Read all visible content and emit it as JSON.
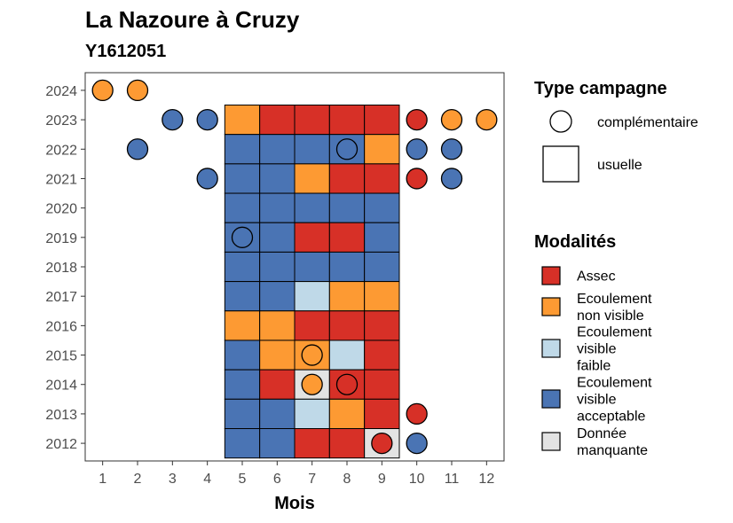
{
  "chart_data": {
    "type": "heatmap",
    "title": "La Nazoure à Cruzy",
    "subtitle": "Y1612051",
    "xlabel": "Mois",
    "ylabel": "",
    "x_ticks": [
      1,
      2,
      3,
      4,
      5,
      6,
      7,
      8,
      9,
      10,
      11,
      12
    ],
    "y_ticks": [
      2012,
      2013,
      2014,
      2015,
      2016,
      2017,
      2018,
      2019,
      2020,
      2021,
      2022,
      2023,
      2024
    ],
    "xlim": [
      0.5,
      12.5
    ],
    "ylim": [
      2011.4,
      2024.6
    ],
    "grid": false,
    "legend_position": "right",
    "colors": {
      "assec": "#d73027",
      "non_visible": "#fd9a33",
      "faible": "#bfd9e8",
      "acceptable": "#4a74b4",
      "manquante": "#e3e3e3"
    },
    "legends": {
      "type": {
        "title": "Type campagne",
        "items": [
          {
            "label": "complémentaire",
            "shape": "circle"
          },
          {
            "label": "usuelle",
            "shape": "square"
          }
        ]
      },
      "modalites": {
        "title": "Modalités",
        "items": [
          {
            "key": "assec",
            "lines": [
              "Assec"
            ]
          },
          {
            "key": "non_visible",
            "lines": [
              "Ecoulement",
              "non visible"
            ]
          },
          {
            "key": "faible",
            "lines": [
              "Ecoulement",
              "visible",
              "faible"
            ]
          },
          {
            "key": "acceptable",
            "lines": [
              "Ecoulement",
              "visible",
              "acceptable"
            ]
          },
          {
            "key": "manquante",
            "lines": [
              "Donnée",
              "manquante"
            ]
          }
        ]
      }
    },
    "usuelle": [
      {
        "year": 2023,
        "values": {
          "5": "non_visible",
          "6": "assec",
          "7": "assec",
          "8": "assec",
          "9": "assec"
        }
      },
      {
        "year": 2022,
        "values": {
          "5": "acceptable",
          "6": "acceptable",
          "7": "acceptable",
          "8": "acceptable",
          "9": "non_visible"
        }
      },
      {
        "year": 2021,
        "values": {
          "5": "acceptable",
          "6": "acceptable",
          "7": "non_visible",
          "8": "assec",
          "9": "assec"
        }
      },
      {
        "year": 2020,
        "values": {
          "5": "acceptable",
          "6": "acceptable",
          "7": "acceptable",
          "8": "acceptable",
          "9": "acceptable"
        }
      },
      {
        "year": 2019,
        "values": {
          "5": "acceptable",
          "6": "acceptable",
          "7": "assec",
          "8": "assec",
          "9": "acceptable"
        }
      },
      {
        "year": 2018,
        "values": {
          "5": "acceptable",
          "6": "acceptable",
          "7": "acceptable",
          "8": "acceptable",
          "9": "acceptable"
        }
      },
      {
        "year": 2017,
        "values": {
          "5": "acceptable",
          "6": "acceptable",
          "7": "faible",
          "8": "non_visible",
          "9": "non_visible"
        }
      },
      {
        "year": 2016,
        "values": {
          "5": "non_visible",
          "6": "non_visible",
          "7": "assec",
          "8": "assec",
          "9": "assec"
        }
      },
      {
        "year": 2015,
        "values": {
          "5": "acceptable",
          "6": "non_visible",
          "7": "non_visible",
          "8": "faible",
          "9": "assec"
        }
      },
      {
        "year": 2014,
        "values": {
          "5": "acceptable",
          "6": "assec",
          "7": "manquante",
          "8": "assec",
          "9": "assec"
        }
      },
      {
        "year": 2013,
        "values": {
          "5": "acceptable",
          "6": "acceptable",
          "7": "faible",
          "8": "non_visible",
          "9": "assec"
        }
      },
      {
        "year": 2012,
        "values": {
          "5": "acceptable",
          "6": "acceptable",
          "7": "assec",
          "8": "assec",
          "9": "manquante"
        }
      }
    ],
    "complementaire": [
      {
        "year": 2024,
        "month": 1,
        "value": "non_visible"
      },
      {
        "year": 2024,
        "month": 2,
        "value": "non_visible"
      },
      {
        "year": 2023,
        "month": 3,
        "value": "acceptable"
      },
      {
        "year": 2023,
        "month": 4,
        "value": "acceptable"
      },
      {
        "year": 2023,
        "month": 10,
        "value": "assec"
      },
      {
        "year": 2023,
        "month": 11,
        "value": "non_visible"
      },
      {
        "year": 2023,
        "month": 12,
        "value": "non_visible"
      },
      {
        "year": 2022,
        "month": 2,
        "value": "acceptable"
      },
      {
        "year": 2022,
        "month": 8,
        "value": "acceptable"
      },
      {
        "year": 2022,
        "month": 10,
        "value": "acceptable"
      },
      {
        "year": 2022,
        "month": 11,
        "value": "acceptable"
      },
      {
        "year": 2021,
        "month": 4,
        "value": "acceptable"
      },
      {
        "year": 2021,
        "month": 10,
        "value": "assec"
      },
      {
        "year": 2021,
        "month": 11,
        "value": "acceptable"
      },
      {
        "year": 2019,
        "month": 5,
        "value": "acceptable"
      },
      {
        "year": 2015,
        "month": 7,
        "value": "non_visible"
      },
      {
        "year": 2014,
        "month": 7,
        "value": "non_visible"
      },
      {
        "year": 2014,
        "month": 8,
        "value": "assec"
      },
      {
        "year": 2013,
        "month": 10,
        "value": "assec"
      },
      {
        "year": 2012,
        "month": 9,
        "value": "assec"
      },
      {
        "year": 2012,
        "month": 10,
        "value": "acceptable"
      }
    ]
  }
}
